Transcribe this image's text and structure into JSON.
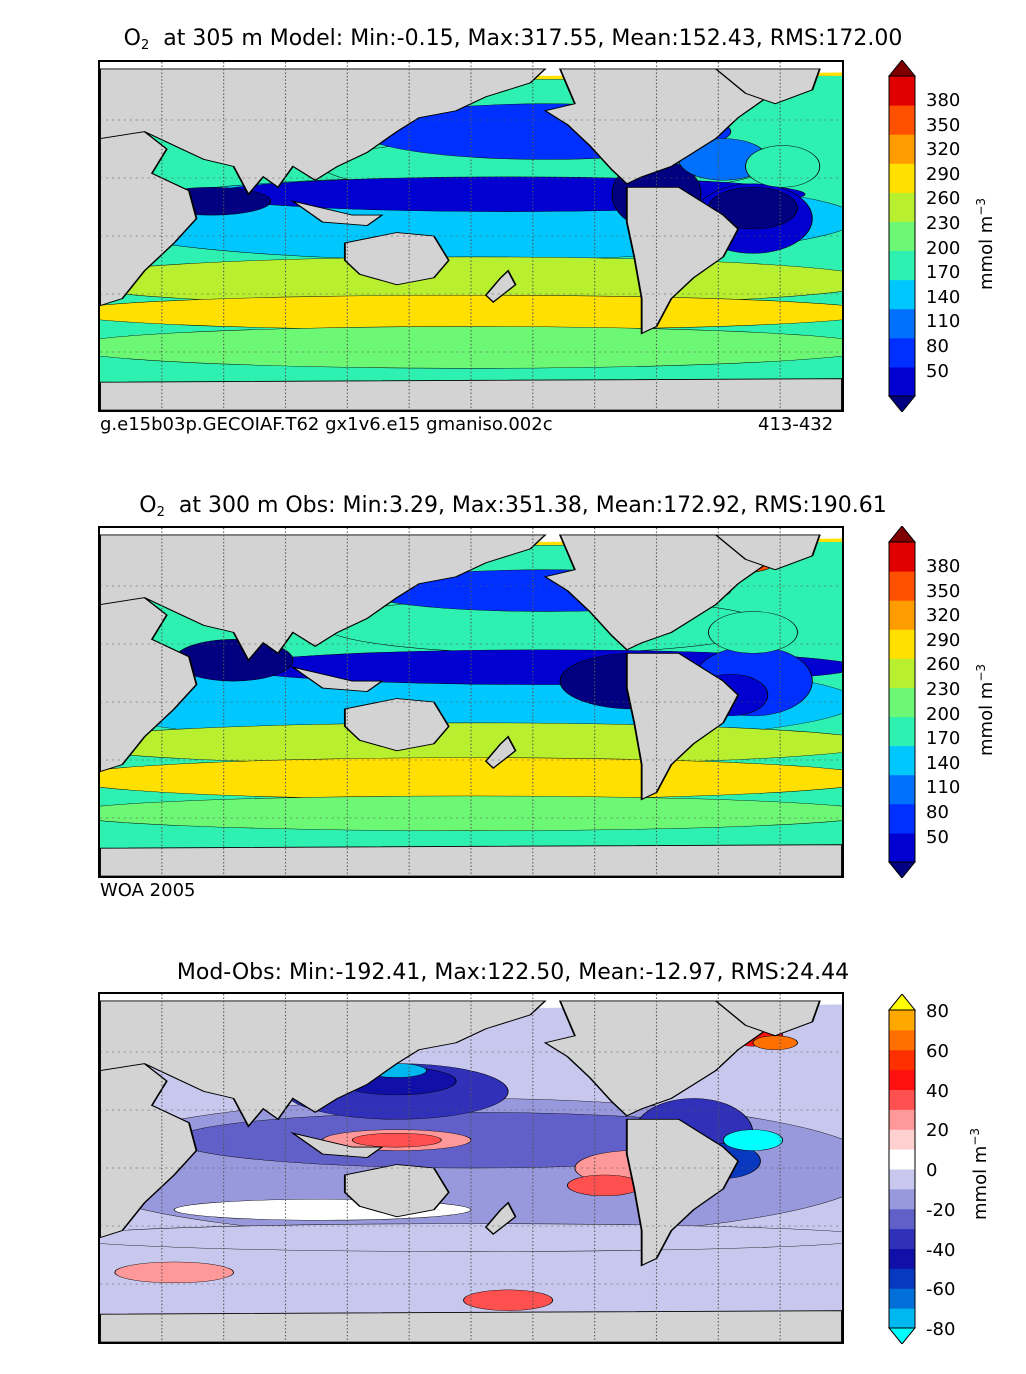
{
  "chart_data": [
    {
      "type": "heatmap",
      "panel": "model",
      "title_symbol": "O",
      "title_sub": "2",
      "title_rest": "at 305 m Model: Min:-0.15, Max:317.55, Mean:152.43, RMS:172.00",
      "stats": {
        "min": -0.15,
        "max": 317.55,
        "mean": 152.43,
        "rms": 172.0
      },
      "depth_m": 305,
      "footnote_left": "g.e15b03p.GECOIAF.T62 gx1v6.e15 gmaniso.002c",
      "footnote_right": "413-432",
      "colorbar": {
        "label": "mmol m",
        "label_sup": "−3",
        "ticks": [
          "380",
          "350",
          "320",
          "290",
          "260",
          "230",
          "200",
          "170",
          "140",
          "110",
          "80",
          "50"
        ],
        "levels": [
          20,
          50,
          80,
          110,
          140,
          170,
          200,
          230,
          260,
          290,
          320,
          350,
          380,
          410
        ],
        "colors": [
          "#000080",
          "#0000d0",
          "#0030ff",
          "#0070ff",
          "#00c8ff",
          "#2ef0b0",
          "#6cf874",
          "#b8f030",
          "#ffe000",
          "#ff9c00",
          "#ff5000",
          "#e00000",
          "#800000"
        ],
        "extend": "both"
      },
      "field_levels": {
        "arabian_sea": 20,
        "pacific_tropics": 80,
        "pacific_subtropics": 170,
        "southern_ocean": 230,
        "arctic": 260,
        "north_atlantic_subpolar": 320,
        "omz_east_pacific": 20
      }
    },
    {
      "type": "heatmap",
      "panel": "obs",
      "title_symbol": "O",
      "title_sub": "2",
      "title_rest": "at 300 m Obs: Min:3.29, Max:351.38, Mean:172.92, RMS:190.61",
      "stats": {
        "min": 3.29,
        "max": 351.38,
        "mean": 172.92,
        "rms": 190.61
      },
      "depth_m": 300,
      "footnote_left": "WOA 2005",
      "colorbar": {
        "label": "mmol m",
        "label_sup": "−3",
        "ticks": [
          "380",
          "350",
          "320",
          "290",
          "260",
          "230",
          "200",
          "170",
          "140",
          "110",
          "80",
          "50"
        ],
        "levels": [
          20,
          50,
          80,
          110,
          140,
          170,
          200,
          230,
          260,
          290,
          320,
          350,
          380,
          410
        ],
        "colors": [
          "#000080",
          "#0000d0",
          "#0030ff",
          "#0070ff",
          "#00c8ff",
          "#2ef0b0",
          "#6cf874",
          "#b8f030",
          "#ffe000",
          "#ff9c00",
          "#ff5000",
          "#e00000",
          "#800000"
        ],
        "extend": "both"
      }
    },
    {
      "type": "heatmap",
      "panel": "diff",
      "title_rest": "Mod-Obs: Min:-192.41, Max:122.50, Mean:-12.97, RMS:24.44",
      "stats": {
        "min": -192.41,
        "max": 122.5,
        "mean": -12.97,
        "rms": 24.44
      },
      "colorbar": {
        "label": "mmol m",
        "label_sup": "−3",
        "ticks": [
          "80",
          "60",
          "40",
          "20",
          "0",
          "-20",
          "-40",
          "-60",
          "-80"
        ],
        "levels": [
          -90,
          -80,
          -70,
          -60,
          -50,
          -40,
          -30,
          -20,
          -10,
          0,
          10,
          20,
          30,
          40,
          50,
          60,
          70,
          80,
          90
        ],
        "colors": [
          "#00ffff",
          "#00b8f0",
          "#0070d8",
          "#0838c0",
          "#1010a8",
          "#3030b8",
          "#6060c8",
          "#9898dc",
          "#c8c8ee",
          "#ffffff",
          "#ffd0d0",
          "#ff9898",
          "#ff5050",
          "#ff1010",
          "#ff3000",
          "#ff7000",
          "#ffa800",
          "#ffff00"
        ],
        "extend": "both"
      }
    }
  ],
  "colors": {
    "land": "#d3d3d3",
    "frame": "#000000",
    "grid": "#555555"
  }
}
